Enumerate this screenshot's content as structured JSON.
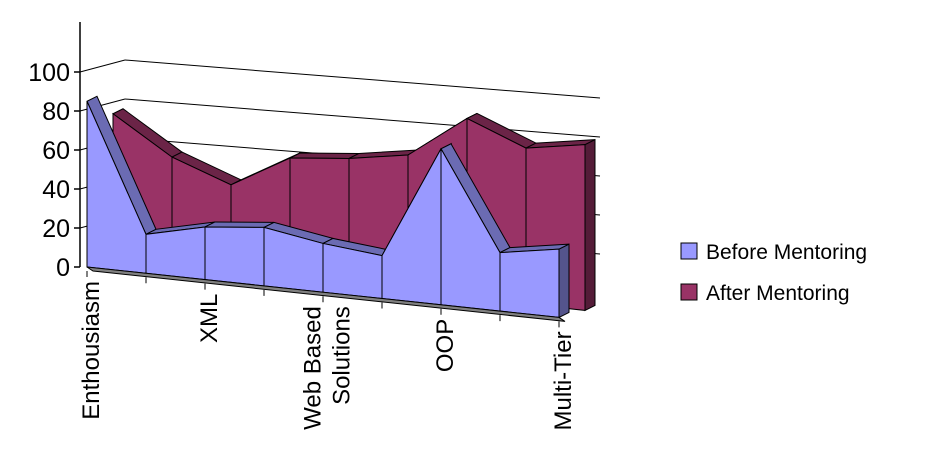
{
  "chart_data": {
    "type": "area",
    "variant": "3d-area",
    "categories": [
      "Enthousiasm",
      "",
      "XML",
      "",
      "Web Based Solutions",
      "",
      "OOP",
      "",
      "Multi-Tier"
    ],
    "category_label_lines": [
      [
        "Enthousiasm"
      ],
      [],
      [
        "XML"
      ],
      [],
      [
        "Web Based",
        "Solutions"
      ],
      [],
      [
        "OOP"
      ],
      [],
      [
        "Multi-Tier"
      ]
    ],
    "series": [
      {
        "name": "Before Mentoring",
        "color": "#9999ff",
        "values": [
          85,
          20,
          27,
          30,
          25,
          22,
          80,
          30,
          35
        ]
      },
      {
        "name": "After Mentoring",
        "color": "#993366",
        "values": [
          75,
          56,
          45,
          62,
          65,
          70,
          92,
          80,
          85
        ]
      }
    ],
    "y_ticks": [
      "0",
      "20",
      "40",
      "60",
      "80",
      "100"
    ],
    "ylim": [
      0,
      100
    ],
    "grid": true,
    "legend_position": "right",
    "title": "",
    "xlabel": "",
    "ylabel": ""
  }
}
